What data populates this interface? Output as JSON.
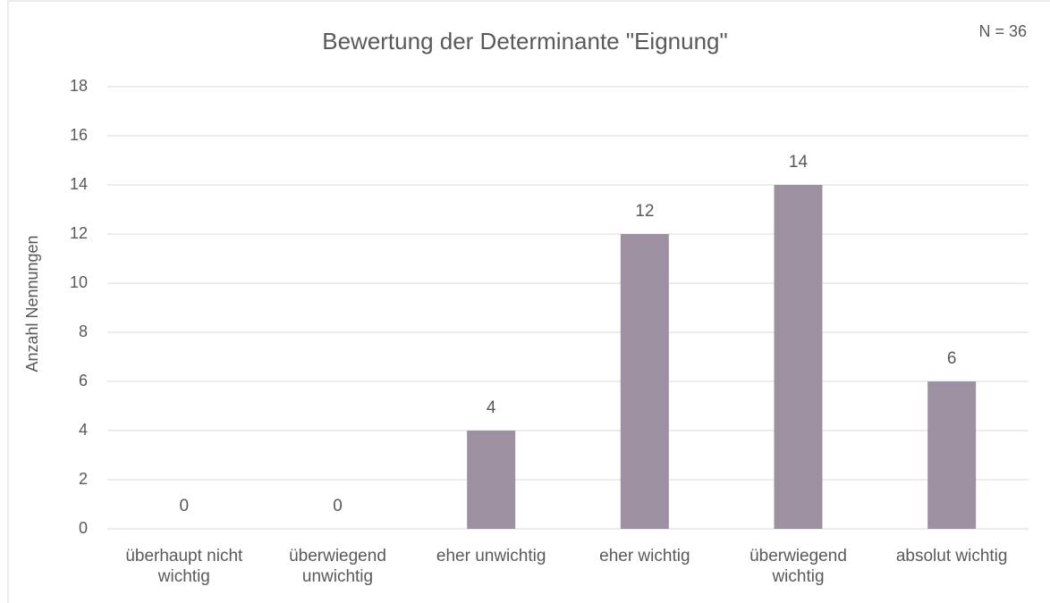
{
  "chart_data": {
    "type": "bar",
    "title": "Bewertung der Determinante \"Eignung\"",
    "annotation": "N = 36",
    "y_label": "Anzahl Nennungen",
    "categories": [
      "überhaupt nicht wichtig",
      "überwiegend unwichtig",
      "eher unwichtig",
      "eher wichtig",
      "überwiegend wichtig",
      "absolut wichtig"
    ],
    "values": [
      0,
      0,
      4,
      12,
      14,
      6
    ],
    "color": "#9d90a0",
    "ylim": [
      0,
      18
    ],
    "yticks": [
      0,
      2,
      4,
      6,
      8,
      10,
      12,
      14,
      16,
      18
    ],
    "grid": true
  }
}
